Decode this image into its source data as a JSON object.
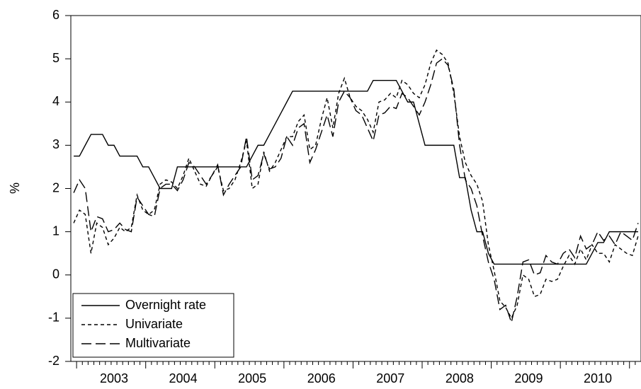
{
  "chart_data": {
    "type": "line",
    "y_label": "%",
    "categories": [
      null,
      null,
      null,
      null,
      null,
      null,
      null,
      "2003",
      null,
      null,
      null,
      null,
      null,
      null,
      null,
      null,
      null,
      null,
      null,
      "2004",
      null,
      null,
      null,
      null,
      null,
      null,
      null,
      null,
      null,
      null,
      null,
      "2005",
      null,
      null,
      null,
      null,
      null,
      null,
      null,
      null,
      null,
      null,
      null,
      "2006",
      null,
      null,
      null,
      null,
      null,
      null,
      null,
      null,
      null,
      null,
      null,
      "2007",
      null,
      null,
      null,
      null,
      null,
      null,
      null,
      null,
      null,
      null,
      null,
      "2008",
      null,
      null,
      null,
      null,
      null,
      null,
      null,
      null,
      null,
      null,
      null,
      "2009",
      null,
      null,
      null,
      null,
      null,
      null,
      null,
      null,
      null,
      null,
      null,
      "2010",
      null,
      null,
      null,
      null,
      null,
      null,
      null
    ],
    "ylim": [
      -2,
      6
    ],
    "yticks": [
      -2,
      -1,
      0,
      1,
      2,
      3,
      4,
      5,
      6
    ],
    "legend": "lower left",
    "series": [
      {
        "name": "Overnight rate",
        "color": "#000000",
        "dash": "solid",
        "values": [
          2.75,
          2.75,
          3.0,
          3.25,
          3.25,
          3.25,
          3.0,
          3.0,
          2.75,
          2.75,
          2.75,
          2.75,
          2.5,
          2.5,
          2.25,
          2.0,
          2.0,
          2.0,
          2.5,
          2.5,
          2.5,
          2.5,
          2.5,
          2.5,
          2.5,
          2.5,
          2.5,
          2.5,
          2.5,
          2.5,
          2.5,
          2.75,
          3.0,
          3.0,
          3.25,
          3.5,
          3.75,
          4.0,
          4.25,
          4.25,
          4.25,
          4.25,
          4.25,
          4.25,
          4.25,
          4.25,
          4.25,
          4.25,
          4.25,
          4.25,
          4.25,
          4.25,
          4.5,
          4.5,
          4.5,
          4.5,
          4.5,
          4.25,
          4.0,
          4.0,
          3.5,
          3.0,
          3.0,
          3.0,
          3.0,
          3.0,
          3.0,
          2.25,
          2.25,
          1.5,
          1.0,
          1.0,
          0.5,
          0.25,
          0.25,
          0.25,
          0.25,
          0.25,
          0.25,
          0.25,
          0.25,
          0.25,
          0.25,
          0.25,
          0.25,
          0.25,
          0.25,
          0.25,
          0.25,
          0.25,
          0.5,
          0.75,
          0.75,
          1.0,
          1.0,
          1.0,
          1.0,
          1.0,
          1.0
        ]
      },
      {
        "name": "Univariate",
        "color": "#000000",
        "dash": "short",
        "values": [
          1.2,
          1.5,
          1.4,
          0.5,
          1.2,
          1.1,
          0.7,
          0.85,
          1.1,
          1.0,
          1.1,
          1.85,
          1.5,
          1.4,
          1.5,
          2.1,
          2.2,
          2.15,
          2.0,
          2.3,
          2.7,
          2.4,
          2.1,
          2.05,
          2.3,
          2.5,
          1.95,
          2.0,
          2.2,
          2.6,
          3.1,
          2.0,
          2.1,
          2.85,
          2.4,
          2.6,
          2.9,
          3.2,
          3.2,
          3.55,
          3.7,
          2.9,
          3.0,
          3.6,
          4.1,
          3.4,
          4.2,
          4.55,
          4.1,
          3.9,
          3.8,
          3.6,
          3.3,
          4.0,
          4.05,
          4.2,
          4.1,
          4.5,
          4.4,
          4.2,
          4.1,
          4.4,
          4.9,
          5.2,
          5.1,
          4.9,
          4.2,
          3.2,
          2.6,
          2.3,
          2.1,
          1.7,
          0.7,
          0.1,
          -0.6,
          -0.75,
          -1.0,
          -0.7,
          0.0,
          -0.1,
          -0.5,
          -0.45,
          -0.1,
          -0.15,
          -0.1,
          0.2,
          0.45,
          0.25,
          0.6,
          0.35,
          0.7,
          0.5,
          0.5,
          0.3,
          0.7,
          0.6,
          0.5,
          0.45,
          0.9
        ]
      },
      {
        "name": "Multivariate",
        "color": "#000000",
        "dash": "long",
        "values": [
          1.9,
          2.2,
          2.0,
          1.0,
          1.35,
          1.3,
          1.0,
          1.05,
          1.2,
          1.05,
          1.0,
          1.8,
          1.6,
          1.4,
          1.35,
          2.0,
          2.1,
          2.1,
          1.95,
          2.2,
          2.6,
          2.5,
          2.3,
          2.1,
          2.3,
          2.55,
          1.85,
          2.1,
          2.3,
          2.5,
          3.2,
          2.2,
          2.3,
          2.8,
          2.45,
          2.5,
          2.7,
          3.2,
          3.0,
          3.4,
          3.5,
          2.6,
          2.9,
          3.3,
          3.7,
          3.2,
          4.0,
          4.25,
          4.1,
          3.8,
          3.7,
          3.4,
          3.1,
          3.7,
          3.75,
          3.9,
          3.85,
          4.2,
          4.1,
          3.9,
          3.7,
          4.0,
          4.4,
          4.9,
          5.0,
          4.85,
          4.3,
          3.0,
          2.2,
          2.0,
          1.6,
          0.9,
          0.3,
          -0.1,
          -0.8,
          -0.7,
          -1.1,
          -0.5,
          0.3,
          0.35,
          0.0,
          0.05,
          0.45,
          0.3,
          0.25,
          0.5,
          0.6,
          0.4,
          0.9,
          0.6,
          0.7,
          1.0,
          0.8,
          0.9,
          0.7,
          1.0,
          0.9,
          0.8,
          1.2
        ]
      }
    ]
  }
}
